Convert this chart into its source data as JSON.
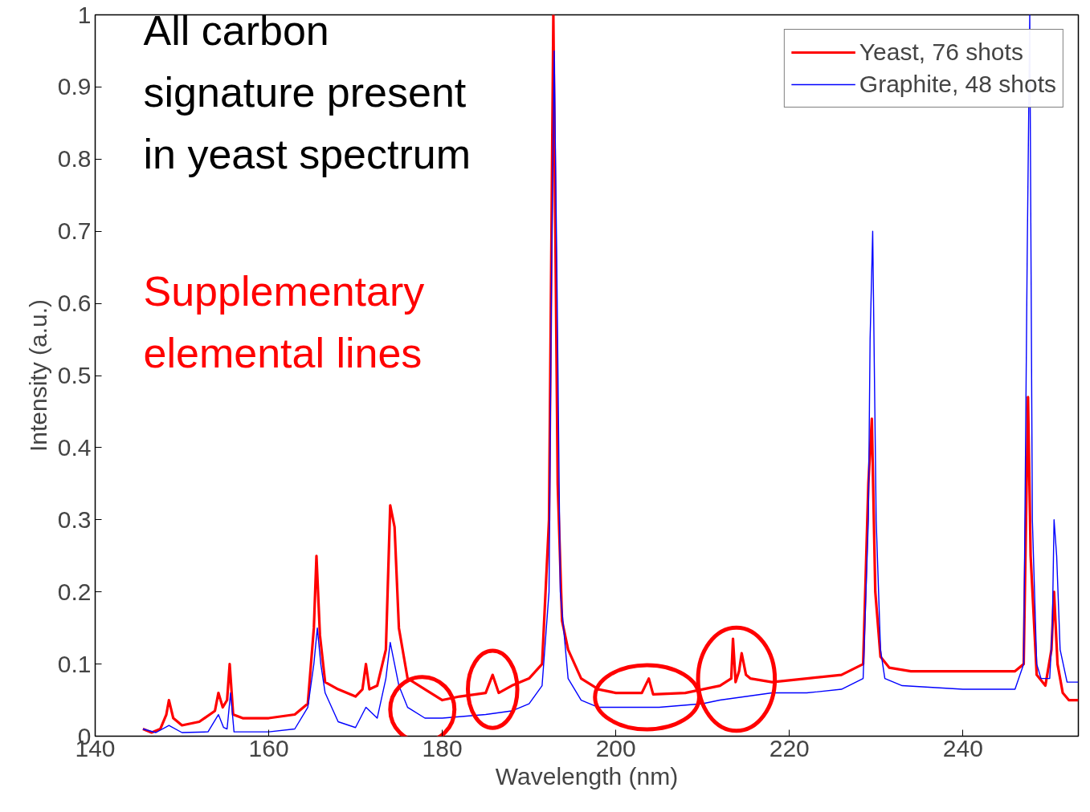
{
  "chart_data": {
    "type": "line",
    "xlabel": "Wavelength (nm)",
    "ylabel": "Intensity (a.u.)",
    "xlim": [
      140,
      253.3
    ],
    "xticks": [
      140,
      160,
      180,
      200,
      220,
      240
    ],
    "ylim": [
      0,
      1
    ],
    "yticks": [
      0,
      0.1,
      0.2,
      0.3,
      0.4,
      0.5,
      0.6,
      0.7,
      0.8,
      0.9,
      1
    ],
    "grid": false,
    "legend": "top right",
    "marker": "none",
    "line_style": "solid",
    "annotations": [
      "All carbon signature present in yeast spectrum",
      "Supplementary elemental lines"
    ],
    "series": [
      {
        "name": "Yeast, 76 shots",
        "color": "#ff0000",
        "x": [
          145.5,
          146.5,
          147.5,
          148.2,
          148.5,
          149,
          150,
          152,
          153.8,
          154.2,
          154.7,
          155.2,
          155.5,
          155.9,
          157,
          160,
          163,
          164.5,
          165.2,
          165.5,
          165.9,
          166.5,
          168,
          170,
          170.8,
          171.2,
          171.6,
          172.5,
          173.5,
          174,
          174.5,
          175,
          176,
          178,
          180,
          182,
          185,
          185.8,
          186.5,
          188,
          190,
          191.5,
          192.3,
          192.8,
          193.3,
          193.8,
          194.5,
          196,
          198,
          200,
          203,
          203.8,
          204.3,
          208,
          210,
          212,
          213.3,
          213.5,
          213.8,
          214.2,
          214.5,
          215,
          215.5,
          218,
          222,
          226,
          228.5,
          229.1,
          229.5,
          229.9,
          230.5,
          231.5,
          234,
          240,
          246,
          247,
          247.5,
          247.8,
          248.5,
          249.5,
          250.2,
          250.5,
          250.9,
          251.5,
          252.2,
          253.3
        ],
        "values": [
          0.01,
          0.005,
          0.01,
          0.03,
          0.05,
          0.025,
          0.015,
          0.02,
          0.035,
          0.06,
          0.04,
          0.05,
          0.1,
          0.03,
          0.025,
          0.025,
          0.03,
          0.045,
          0.15,
          0.25,
          0.14,
          0.075,
          0.065,
          0.055,
          0.065,
          0.1,
          0.065,
          0.07,
          0.12,
          0.32,
          0.29,
          0.15,
          0.08,
          0.065,
          0.05,
          0.055,
          0.06,
          0.085,
          0.06,
          0.07,
          0.08,
          0.1,
          0.3,
          1.0,
          0.35,
          0.16,
          0.12,
          0.08,
          0.065,
          0.06,
          0.06,
          0.08,
          0.058,
          0.06,
          0.065,
          0.07,
          0.08,
          0.135,
          0.075,
          0.09,
          0.115,
          0.085,
          0.08,
          0.075,
          0.08,
          0.085,
          0.1,
          0.35,
          0.44,
          0.2,
          0.11,
          0.095,
          0.09,
          0.09,
          0.09,
          0.1,
          0.47,
          0.25,
          0.085,
          0.07,
          0.12,
          0.2,
          0.1,
          0.06,
          0.05,
          0.05
        ]
      },
      {
        "name": "Graphite, 48 shots",
        "color": "#0000ff",
        "x": [
          145.5,
          147,
          148.5,
          150,
          153,
          154.2,
          154.8,
          155.2,
          155.6,
          156,
          160,
          163,
          164.5,
          165.2,
          165.6,
          166,
          166.5,
          168,
          170,
          171.2,
          172.5,
          173.5,
          174,
          174.5,
          175,
          176,
          178,
          180,
          185,
          188,
          190,
          191.5,
          192.3,
          192.6,
          192.9,
          193.2,
          193.6,
          194.5,
          196,
          198,
          200,
          205,
          210,
          212,
          215,
          218,
          222,
          226,
          228.5,
          229.1,
          229.3,
          229.6,
          230,
          230.5,
          231,
          233,
          240,
          246,
          247,
          247.4,
          247.7,
          248,
          248.5,
          249,
          250,
          250.3,
          250.5,
          250.8,
          251.2,
          252,
          253.3
        ],
        "values": [
          0.01,
          0.005,
          0.015,
          0.005,
          0.006,
          0.03,
          0.012,
          0.01,
          0.06,
          0.006,
          0.006,
          0.01,
          0.04,
          0.1,
          0.15,
          0.1,
          0.06,
          0.02,
          0.012,
          0.04,
          0.025,
          0.08,
          0.13,
          0.1,
          0.07,
          0.04,
          0.025,
          0.025,
          0.03,
          0.035,
          0.045,
          0.07,
          0.2,
          0.65,
          0.95,
          0.65,
          0.2,
          0.08,
          0.05,
          0.04,
          0.04,
          0.04,
          0.045,
          0.05,
          0.055,
          0.06,
          0.06,
          0.065,
          0.08,
          0.3,
          0.55,
          0.7,
          0.3,
          0.12,
          0.08,
          0.07,
          0.065,
          0.065,
          0.1,
          0.66,
          1.0,
          0.3,
          0.1,
          0.08,
          0.08,
          0.15,
          0.3,
          0.25,
          0.12,
          0.075,
          0.075
        ]
      }
    ]
  }
}
